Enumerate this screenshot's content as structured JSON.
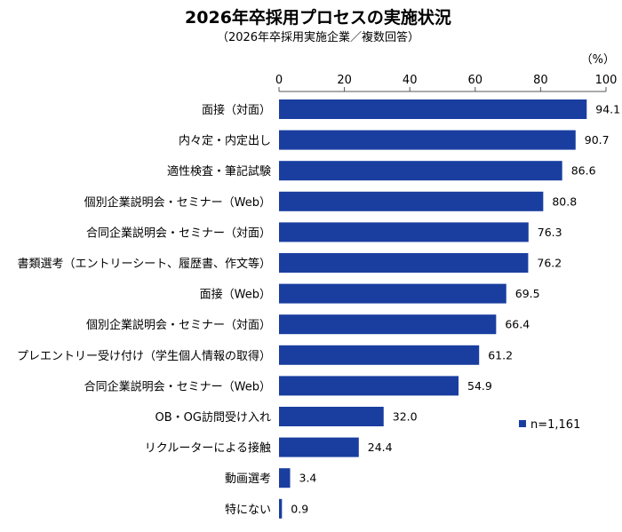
{
  "chart_data": {
    "type": "bar",
    "orientation": "horizontal",
    "title": "2026年卒採用プロセスの実施状況",
    "subtitle": "（2026年卒採用実施企業／複数回答）",
    "unit_label": "（%）",
    "xlim": [
      0,
      100
    ],
    "xticks": [
      "0",
      "20",
      "40",
      "60",
      "80",
      "100"
    ],
    "grid": false,
    "legend": {
      "label": "n=1,161",
      "placement": "right"
    },
    "bar_color": "#1a3ea0",
    "categories": [
      "面接（対面）",
      "内々定・内定出し",
      "適性検査・筆記試験",
      "個別企業説明会・セミナー（Web）",
      "合同企業説明会・セミナー（対面）",
      "書類選考（エントリーシート、履歴書、作文等）",
      "面接（Web）",
      "個別企業説明会・セミナー（対面）",
      "プレエントリー受け付け（学生個人情報の取得）",
      "合同企業説明会・セミナー（Web）",
      "OB・OG訪問受け入れ",
      "リクルーターによる接触",
      "動画選考",
      "特にない"
    ],
    "values": [
      94.1,
      90.7,
      86.6,
      80.8,
      76.3,
      76.2,
      69.5,
      66.4,
      61.2,
      54.9,
      32.0,
      24.4,
      3.4,
      0.9
    ],
    "value_labels": [
      "94.1",
      "90.7",
      "86.6",
      "80.8",
      "76.3",
      "76.2",
      "69.5",
      "66.4",
      "61.2",
      "54.9",
      "32.0",
      "24.4",
      "3.4",
      "0.9"
    ]
  }
}
